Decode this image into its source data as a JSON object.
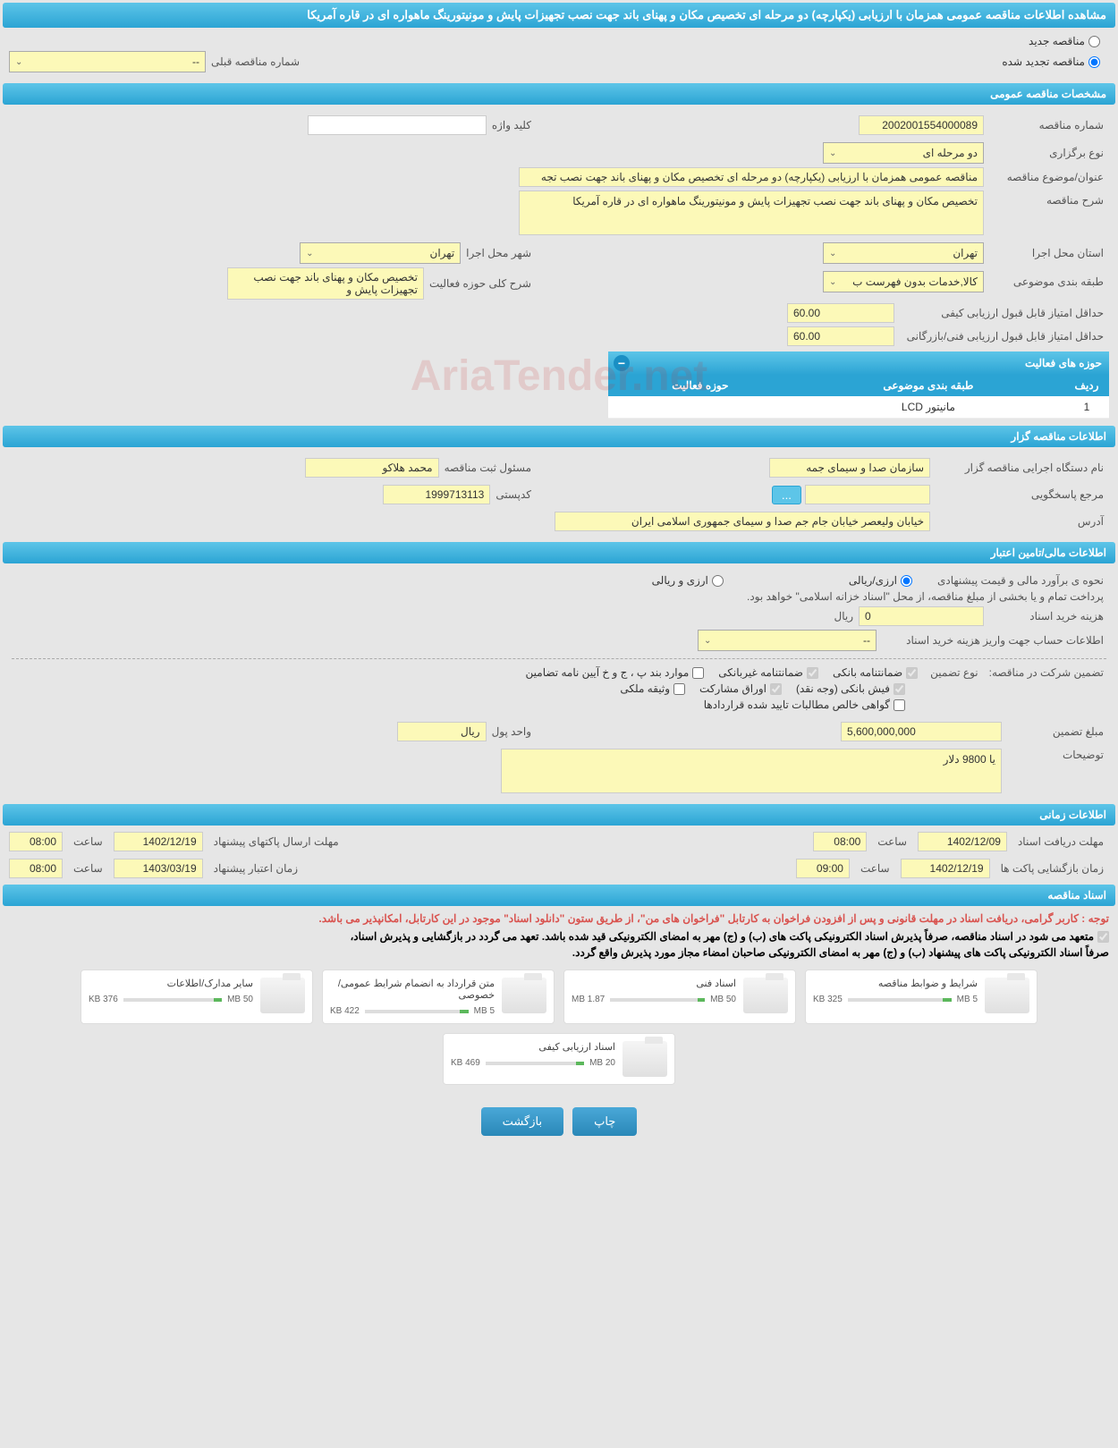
{
  "page_title": "مشاهده اطلاعات مناقصه عمومی همزمان با ارزیابی (یکپارچه) دو مرحله ای تخصیص مکان و پهنای باند جهت نصب تجهیزات پایش و مونیتورینگ ماهواره ای در قاره آمریکا",
  "top_radios": {
    "new_tender": "مناقصه جدید",
    "renewed_tender": "مناقصه تجدید شده"
  },
  "prev_number_label": "شماره مناقصه قبلی",
  "prev_number_value": "--",
  "sections": {
    "general": "مشخصات مناقصه عمومی",
    "organizer": "اطلاعات مناقصه گزار",
    "financial": "اطلاعات مالی/تامین اعتبار",
    "timing": "اطلاعات زمانی",
    "documents": "اسناد مناقصه"
  },
  "general": {
    "tender_number_label": "شماره مناقصه",
    "tender_number": "2002001554000089",
    "keyword_label": "کلید واژه",
    "keyword": "",
    "type_label": "نوع برگزاری",
    "type": "دو مرحله ای",
    "subject_label": "عنوان/موضوع مناقصه",
    "subject": "مناقصه عمومی همزمان با ارزیابی (یکپارچه) دو مرحله ای تخصیص مکان و پهنای باند جهت نصب تجه",
    "desc_label": "شرح مناقصه",
    "desc": "تخصیص مکان و پهنای باند جهت نصب تجهیزات پایش و مونیتورینگ ماهواره ای در قاره آمریکا",
    "province_label": "استان محل اجرا",
    "province": "تهران",
    "city_label": "شهر محل اجرا",
    "city": "تهران",
    "category_label": "طبقه بندی موضوعی",
    "category": "کالا,خدمات بدون فهرست ب",
    "activity_desc_label": "شرح کلی حوزه فعالیت",
    "activity_desc": "تخصیص مکان و پهنای باند جهت نصب تجهیزات پایش و",
    "min_quality_label": "حداقل امتیاز قابل قبول ارزیابی کیفی",
    "min_quality": "60.00",
    "min_tech_label": "حداقل امتیاز قابل قبول ارزیابی فنی/بازرگانی",
    "min_tech": "60.00"
  },
  "activity_table": {
    "title": "حوزه های فعالیت",
    "cols": {
      "row": "ردیف",
      "category": "طبقه بندی موضوعی",
      "activity": "حوزه فعالیت"
    },
    "rows": [
      {
        "row": "1",
        "category": "مانیتور LCD",
        "activity": ""
      }
    ]
  },
  "organizer": {
    "org_label": "نام دستگاه اجرایی مناقصه گزار",
    "org": "سازمان صدا و سیمای جمه",
    "responsible_label": "مسئول ثبت مناقصه",
    "responsible": "محمد هلاکو",
    "ref_label": "مرجع پاسخگویی",
    "ref_btn": "...",
    "postal_label": "کدپستی",
    "postal": "1999713113",
    "address_label": "آدرس",
    "address": "خیابان ولیعصر خیابان جام جم صدا و سیمای جمهوری اسلامی ایران"
  },
  "financial": {
    "estimate_label": "نحوه ی برآورد مالی و قیمت پیشنهادی",
    "opt_rial": "ارزی/ریالی",
    "opt_both": "ارزی و ریالی",
    "payment_note": "پرداخت تمام و یا بخشی از مبلغ مناقصه، از محل \"اسناد خزانه اسلامی\" خواهد بود.",
    "doc_cost_label": "هزینه خرید اسناد",
    "doc_cost": "0",
    "currency": "ریال",
    "account_label": "اطلاعات حساب جهت واریز هزینه خرید اسناد",
    "account": "--",
    "guarantee_label": "تضمین شرکت در مناقصه:",
    "guarantee_type_label": "نوع تضمین",
    "chk_bank": "ضمانتنامه بانکی",
    "chk_nonbank": "ضمانتنامه غیربانکی",
    "chk_items": "موارد بند پ ، ج و خ آیین نامه تضامین",
    "chk_cash": "فیش بانکی (وجه نقد)",
    "chk_bonds": "اوراق مشارکت",
    "chk_property": "وثیقه ملکی",
    "chk_receivables": "گواهی خالص مطالبات تایید شده قراردادها",
    "amount_label": "مبلغ تضمین",
    "amount": "5,600,000,000",
    "unit_label": "واحد پول",
    "unit": "ریال",
    "notes_label": "توضیحات",
    "notes": "یا 9800 دلار"
  },
  "timing": {
    "receive_deadline_label": "مهلت دریافت اسناد",
    "receive_deadline": "1402/12/09",
    "receive_time_label": "ساعت",
    "receive_time": "08:00",
    "send_deadline_label": "مهلت ارسال پاکتهای پیشنهاد",
    "send_deadline": "1402/12/19",
    "send_time_label": "ساعت",
    "send_time": "08:00",
    "open_label": "زمان بازگشایی پاکت ها",
    "open_date": "1402/12/19",
    "open_time_label": "ساعت",
    "open_time": "09:00",
    "validity_label": "زمان اعتبار پیشنهاد",
    "validity_date": "1403/03/19",
    "validity_time_label": "ساعت",
    "validity_time": "08:00"
  },
  "documents": {
    "warning": "توجه : کاربر گرامی، دریافت اسناد در مهلت قانونی و پس از افزودن فراخوان به کارتابل \"فراخوان های من\"، از طریق ستون \"دانلود اسناد\" موجود در این کارتابل، امکانپذیر می باشد.",
    "note1": "متعهد می شود در اسناد مناقصه، صرفاً پذیرش اسناد الکترونیکی پاکت های (ب) و (ج) مهر به امضای الکترونیکی قید شده باشد. تعهد می گردد در بازگشایی و پذیرش اسناد،",
    "note2": "صرفاً اسناد الکترونیکی پاکت های پیشنهاد (ب) و (ج) مهر به امضای الکترونیکی صاحبان امضاء مجاز مورد پذیرش واقع گردد.",
    "items": [
      {
        "title": "شرایط و ضوابط مناقصه",
        "used": "325 KB",
        "total": "5 MB"
      },
      {
        "title": "اسناد فنی",
        "used": "1.87 MB",
        "total": "50 MB"
      },
      {
        "title": "متن قرارداد به انضمام شرایط عمومی/خصوصی",
        "used": "422 KB",
        "total": "5 MB"
      },
      {
        "title": "سایر مدارک/اطلاعات",
        "used": "376 KB",
        "total": "50 MB"
      },
      {
        "title": "اسناد ارزیابی کیفی",
        "used": "469 KB",
        "total": "20 MB"
      }
    ]
  },
  "buttons": {
    "print": "چاپ",
    "back": "بازگشت"
  },
  "watermark": "AriaTender.net",
  "colors": {
    "header_bg": "#2ba4d4",
    "field_bg": "#fcf9b8",
    "page_bg": "#e6e6e6",
    "warning": "#d9534f"
  }
}
